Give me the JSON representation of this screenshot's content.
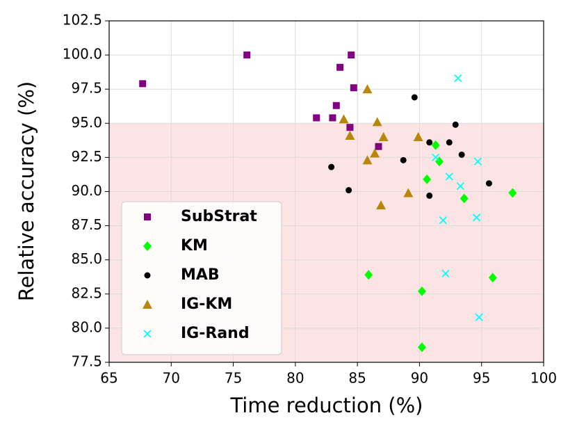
{
  "chart_data": {
    "type": "scatter",
    "xlabel": "Time reduction (%)",
    "ylabel": "Relative accuracy (%)",
    "xlim": [
      65,
      100
    ],
    "xticks": [
      65,
      70,
      75,
      80,
      85,
      90,
      95,
      100
    ],
    "ylim": [
      77.5,
      102.5
    ],
    "yticks": [
      77.5,
      {
        "value": 80,
        "label": "80.0"
      },
      82.5,
      {
        "value": 85,
        "label": "85.0"
      },
      87.5,
      {
        "value": 90,
        "label": "90.0"
      },
      92.5,
      {
        "value": 95,
        "label": "95.0"
      },
      97.5,
      {
        "value": 100,
        "label": "100.0"
      },
      102.5
    ],
    "grid": true,
    "legend": "lower left",
    "shaded_region": {
      "ylim": [
        77.5,
        95
      ],
      "color": "#fde4e4"
    },
    "series": [
      {
        "name": "SubStrat",
        "color": "#800080",
        "marker": "square",
        "x": [
          67.7,
          76.1,
          84.5,
          83.6,
          83.3,
          81.7,
          83.0,
          84.4,
          84.7,
          86.7
        ],
        "values": [
          97.9,
          100.0,
          100.0,
          99.1,
          96.3,
          95.4,
          95.4,
          94.7,
          97.6,
          93.3
        ]
      },
      {
        "name": "KM",
        "color": "#00ff00",
        "marker": "diamond",
        "x": [
          91.3,
          91.6,
          90.6,
          93.6,
          97.5,
          85.9,
          90.2,
          95.9,
          90.2
        ],
        "values": [
          93.4,
          92.2,
          90.9,
          89.5,
          89.9,
          83.9,
          82.7,
          83.7,
          78.6
        ]
      },
      {
        "name": "MAB",
        "color": "#000000",
        "marker": "circle",
        "x": [
          89.6,
          92.9,
          90.8,
          92.4,
          93.4,
          88.7,
          82.9,
          95.6,
          84.3,
          90.8
        ],
        "values": [
          96.9,
          94.9,
          93.6,
          93.6,
          92.7,
          92.3,
          91.8,
          90.6,
          90.1,
          89.7
        ]
      },
      {
        "name": "IG-KM",
        "color": "#b8860b",
        "marker": "triangle",
        "x": [
          85.8,
          83.9,
          86.6,
          84.4,
          87.1,
          89.9,
          86.4,
          85.8,
          89.1,
          86.9
        ],
        "values": [
          97.5,
          95.3,
          95.1,
          94.1,
          94.0,
          94.0,
          92.8,
          92.3,
          89.9,
          89.0
        ]
      },
      {
        "name": "IG-Rand",
        "color": "#00ffff",
        "marker": "x",
        "x": [
          93.1,
          91.3,
          92.4,
          94.7,
          93.3,
          91.9,
          94.6,
          92.1,
          94.8
        ],
        "values": [
          98.3,
          92.5,
          91.1,
          92.2,
          90.4,
          87.9,
          88.1,
          84.0,
          80.8
        ]
      }
    ]
  }
}
